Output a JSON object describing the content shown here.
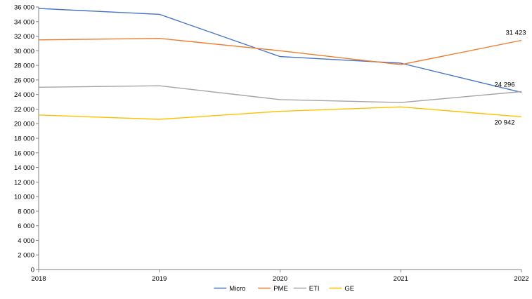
{
  "chart_data": {
    "type": "line",
    "title": "",
    "xlabel": "",
    "ylabel": "",
    "x": [
      "2018",
      "2019",
      "2020",
      "2021",
      "2022"
    ],
    "ylim": [
      0,
      36000
    ],
    "yticks": [
      0,
      2000,
      4000,
      6000,
      8000,
      10000,
      12000,
      14000,
      16000,
      18000,
      20000,
      22000,
      24000,
      26000,
      28000,
      30000,
      32000,
      34000,
      36000
    ],
    "ytick_labels": [
      "0",
      "2 000",
      "4 000",
      "6 000",
      "8 000",
      "10 000",
      "12 000",
      "14 000",
      "16 000",
      "18 000",
      "20 000",
      "22 000",
      "24 000",
      "26 000",
      "28 000",
      "30 000",
      "32 000",
      "34 000",
      "36 000"
    ],
    "grid": false,
    "legend_position": "bottom",
    "series": [
      {
        "name": "Micro",
        "color": "#4472C4",
        "values": [
          35800,
          35000,
          29200,
          28300,
          24296
        ]
      },
      {
        "name": "PME",
        "color": "#ED7D31",
        "values": [
          31500,
          31700,
          30000,
          28100,
          31423
        ]
      },
      {
        "name": "ETI",
        "color": "#A5A5A5",
        "values": [
          25000,
          25200,
          23300,
          22900,
          24400
        ]
      },
      {
        "name": "GE",
        "color": "#FFC000",
        "values": [
          21200,
          20600,
          21700,
          22300,
          20942
        ]
      }
    ],
    "annotations": [
      {
        "series": "PME",
        "x": "2022",
        "label": "31 423"
      },
      {
        "series": "Micro",
        "x": "2022",
        "label": "24 296"
      },
      {
        "series": "GE",
        "x": "2022",
        "label": "20 942"
      }
    ]
  }
}
